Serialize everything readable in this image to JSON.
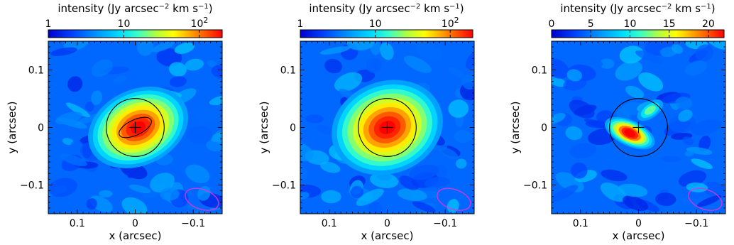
{
  "chart_data": [
    {
      "type": "heatmap",
      "colorbar": {
        "label_main": "intensity (Jy arcsec",
        "label_exp1": "−2",
        "label_mid": " km s",
        "label_exp2": "−1",
        "label_end": ")",
        "scale": "log",
        "range": [
          1,
          200
        ],
        "ticks": [
          {
            "value": 1,
            "label": "1"
          },
          {
            "value": 10,
            "label": "10"
          },
          {
            "value": 100,
            "label": "10",
            "sup": "2"
          }
        ]
      },
      "xlabel": "x (arcsec)",
      "ylabel": "y (arcsec)",
      "xlim": [
        0.15,
        -0.15
      ],
      "ylim": [
        -0.15,
        0.15
      ],
      "xticks": [
        {
          "value": 0.1,
          "label": "0.1"
        },
        {
          "value": 0,
          "label": "0"
        },
        {
          "value": -0.1,
          "label": "−0.1"
        }
      ],
      "yticks": [
        {
          "value": 0.1,
          "label": "0.1"
        },
        {
          "value": 0,
          "label": "0"
        },
        {
          "value": -0.1,
          "label": "−0.1"
        }
      ],
      "peak": {
        "x": -0.005,
        "y": 0.0,
        "value": 200
      },
      "source_ellipse": {
        "semi_major": 0.055,
        "semi_minor": 0.022,
        "pa_deg": -25
      },
      "inner_ellipse": true,
      "circle_radius": 0.05,
      "beam": {
        "x": -0.115,
        "y": -0.125,
        "semi_major": 0.03,
        "semi_minor": 0.017,
        "pa_deg": -20,
        "color": "#dd33dd"
      },
      "colors": {
        "low": "#0000ff",
        "high": "#ff0000"
      }
    },
    {
      "type": "heatmap",
      "colorbar": {
        "label_main": "intensity (Jy arcsec",
        "label_exp1": "−2",
        "label_mid": " km s",
        "label_exp2": "−1",
        "label_end": ")",
        "scale": "log",
        "range": [
          1,
          200
        ],
        "ticks": [
          {
            "value": 1,
            "label": "1"
          },
          {
            "value": 10,
            "label": "10"
          },
          {
            "value": 100,
            "label": "10",
            "sup": "2"
          }
        ]
      },
      "xlabel": "x (arcsec)",
      "ylabel": "y (arcsec)",
      "xlim": [
        0.15,
        -0.15
      ],
      "ylim": [
        -0.15,
        0.15
      ],
      "xticks": [
        {
          "value": 0.1,
          "label": "0.1"
        },
        {
          "value": 0,
          "label": "0"
        },
        {
          "value": -0.1,
          "label": "−0.1"
        }
      ],
      "yticks": [
        {
          "value": 0.1,
          "label": "0.1"
        },
        {
          "value": 0,
          "label": "0"
        },
        {
          "value": -0.1,
          "label": "−0.1"
        }
      ],
      "peak": {
        "x": 0.0,
        "y": 0.0,
        "value": 200
      },
      "source_ellipse": {
        "semi_major": 0.06,
        "semi_minor": 0.04,
        "pa_deg": -20
      },
      "inner_ellipse": false,
      "circle_radius": 0.05,
      "beam": {
        "x": -0.115,
        "y": -0.125,
        "semi_major": 0.03,
        "semi_minor": 0.017,
        "pa_deg": -20,
        "color": "#dd33dd"
      },
      "colors": {
        "low": "#0000ff",
        "high": "#ff0000"
      }
    },
    {
      "type": "heatmap",
      "colorbar": {
        "label_main": "intensity (Jy arcsec",
        "label_exp1": "−2",
        "label_mid": " km s",
        "label_exp2": "−1",
        "label_end": ")",
        "scale": "linear",
        "range": [
          0,
          22
        ],
        "ticks": [
          {
            "value": 0,
            "label": "0"
          },
          {
            "value": 5,
            "label": "5"
          },
          {
            "value": 10,
            "label": "10"
          },
          {
            "value": 15,
            "label": "15"
          },
          {
            "value": 20,
            "label": "20"
          }
        ]
      },
      "xlabel": "x (arcsec)",
      "ylabel": "y (arcsec)",
      "xlim": [
        0.15,
        -0.15
      ],
      "ylim": [
        -0.15,
        0.15
      ],
      "xticks": [
        {
          "value": 0.1,
          "label": "0.1"
        },
        {
          "value": 0,
          "label": "0"
        },
        {
          "value": -0.1,
          "label": "−0.1"
        }
      ],
      "yticks": [
        {
          "value": 0.1,
          "label": "0.1"
        },
        {
          "value": 0,
          "label": "0"
        },
        {
          "value": -0.1,
          "label": "−0.1"
        }
      ],
      "peak": {
        "x": 0.015,
        "y": -0.01,
        "value": 22
      },
      "secondary_peak": {
        "x": -0.02,
        "y": 0.03,
        "value": 12
      },
      "inner_ellipse": false,
      "circle_radius": 0.05,
      "beam": {
        "x": -0.115,
        "y": -0.125,
        "semi_major": 0.03,
        "semi_minor": 0.017,
        "pa_deg": -20,
        "color": "#dd33dd"
      },
      "colors": {
        "low": "#0000ff",
        "high": "#ff0000"
      }
    }
  ]
}
